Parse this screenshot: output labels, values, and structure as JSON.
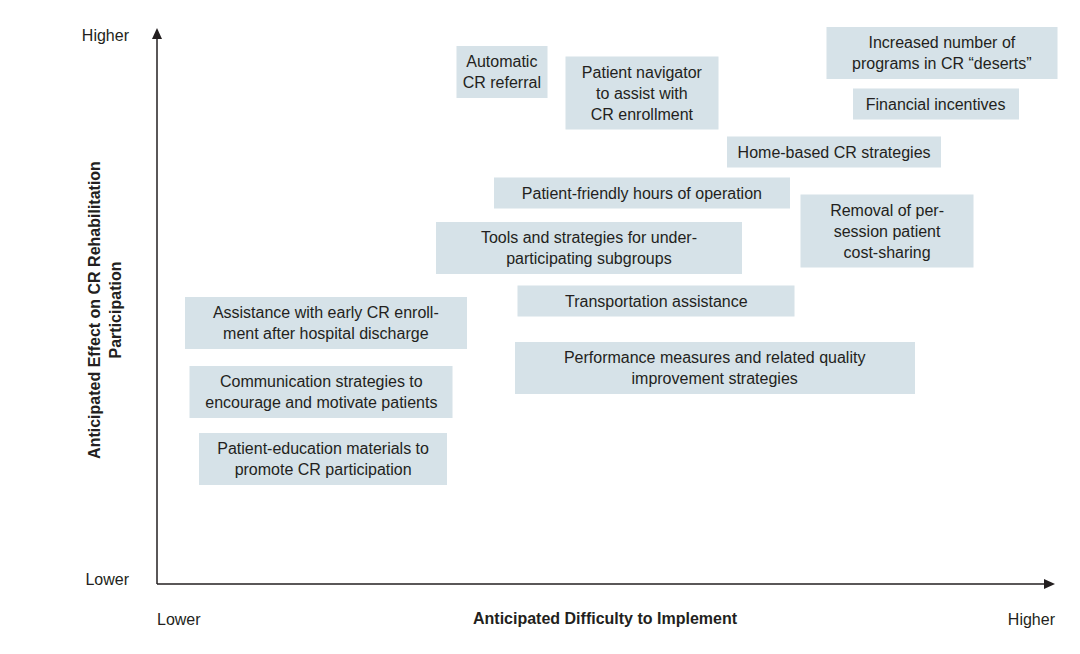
{
  "chart_data": {
    "type": "scatter",
    "marker": "label-box",
    "color": "#d6e2e8",
    "x_label": "Anticipated Difficulty to Implement",
    "y_label": [
      "Anticipated Effect on CR Rehabilitation",
      "Participation"
    ],
    "xlim": [
      0,
      100
    ],
    "ylim": [
      0,
      100
    ],
    "xticks": [
      {
        "value": 0,
        "label": "Lower"
      },
      {
        "value": 100,
        "label": "Higher"
      }
    ],
    "yticks": [
      {
        "value": 0,
        "label": "Lower"
      },
      {
        "value": 100,
        "label": "Higher"
      }
    ],
    "labels": [
      [
        "Automatic",
        "CR referral"
      ],
      [
        "Patient navigator",
        "to assist with",
        "CR enrollment"
      ],
      [
        "Increased number of",
        "programs in CR “deserts”"
      ],
      [
        "Financial incentives"
      ],
      [
        "Home-based CR strategies"
      ],
      [
        "Patient-friendly hours of operation"
      ],
      [
        "Removal of per-",
        "session patient",
        "cost-sharing"
      ],
      [
        "Tools and strategies for under-",
        "participating subgroups"
      ],
      [
        "Transportation assistance"
      ],
      [
        "Assistance with early CR enroll-",
        "ment after hospital discharge"
      ],
      [
        "Performance measures and related quality",
        "improvement strategies"
      ],
      [
        "Communication strategies to",
        "encourage and motivate patients"
      ],
      [
        "Patient-education materials to",
        "promote CR participation"
      ]
    ],
    "x": [
      38.4,
      54.0,
      87.4,
      86.7,
      75.4,
      54.0,
      81.3,
      48.1,
      55.6,
      18.8,
      62.1,
      18.3,
      18.5
    ],
    "values": [
      93.4,
      89.5,
      96.9,
      87.5,
      78.7,
      71.1,
      64.2,
      61.0,
      51.3,
      47.2,
      39.0,
      34.6,
      22.2
    ]
  }
}
